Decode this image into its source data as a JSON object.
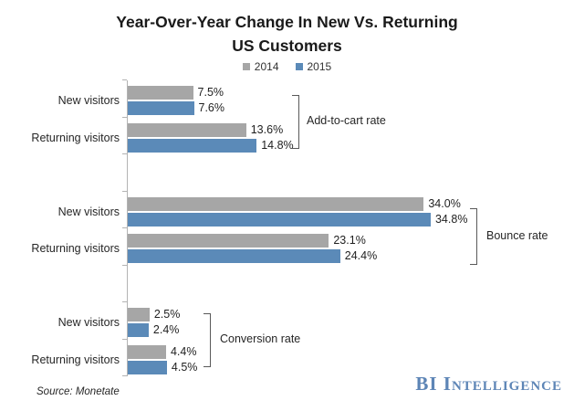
{
  "header": {
    "title_lines": [
      "Year-Over-Year Change In New Vs. Returning",
      "US Customers"
    ]
  },
  "legend": {
    "items": [
      {
        "label": "2014",
        "color": "#a6a6a6"
      },
      {
        "label": "2015",
        "color": "#5b8ab8"
      }
    ]
  },
  "chart_data": {
    "type": "bar",
    "orientation": "horizontal",
    "title": "Year-Over-Year Change In New Vs. Returning US Customers",
    "series_names": [
      "2014",
      "2015"
    ],
    "series_colors": [
      "#a6a6a6",
      "#5b8ab8"
    ],
    "value_unit": "%",
    "xlim": [
      0,
      40
    ],
    "grid": false,
    "legend_position": "top-center",
    "data_labels_shown": true,
    "groups": [
      {
        "label": "Add-to-cart rate",
        "rows": [
          {
            "category": "New visitors",
            "values": [
              7.5,
              7.6
            ],
            "value_labels": [
              "7.5%",
              "7.6%"
            ]
          },
          {
            "category": "Returning visitors",
            "values": [
              13.6,
              14.8
            ],
            "value_labels": [
              "13.6%",
              "14.8%"
            ]
          }
        ]
      },
      {
        "label": "Bounce rate",
        "rows": [
          {
            "category": "New visitors",
            "values": [
              34.0,
              34.8
            ],
            "value_labels": [
              "34.0%",
              "34.8%"
            ]
          },
          {
            "category": "Returning visitors",
            "values": [
              23.1,
              24.4
            ],
            "value_labels": [
              "23.1%",
              "24.4%"
            ]
          }
        ]
      },
      {
        "label": "Conversion rate",
        "rows": [
          {
            "category": "New visitors",
            "values": [
              2.5,
              2.4
            ],
            "value_labels": [
              "2.5%",
              "2.4%"
            ]
          },
          {
            "category": "Returning visitors",
            "values": [
              4.4,
              4.5
            ],
            "value_labels": [
              "4.4%",
              "4.5%"
            ]
          }
        ]
      }
    ]
  },
  "footer": {
    "source": "Source: Monetate",
    "logo": "BI Intelligence",
    "logo_color": "#5d85b6"
  }
}
